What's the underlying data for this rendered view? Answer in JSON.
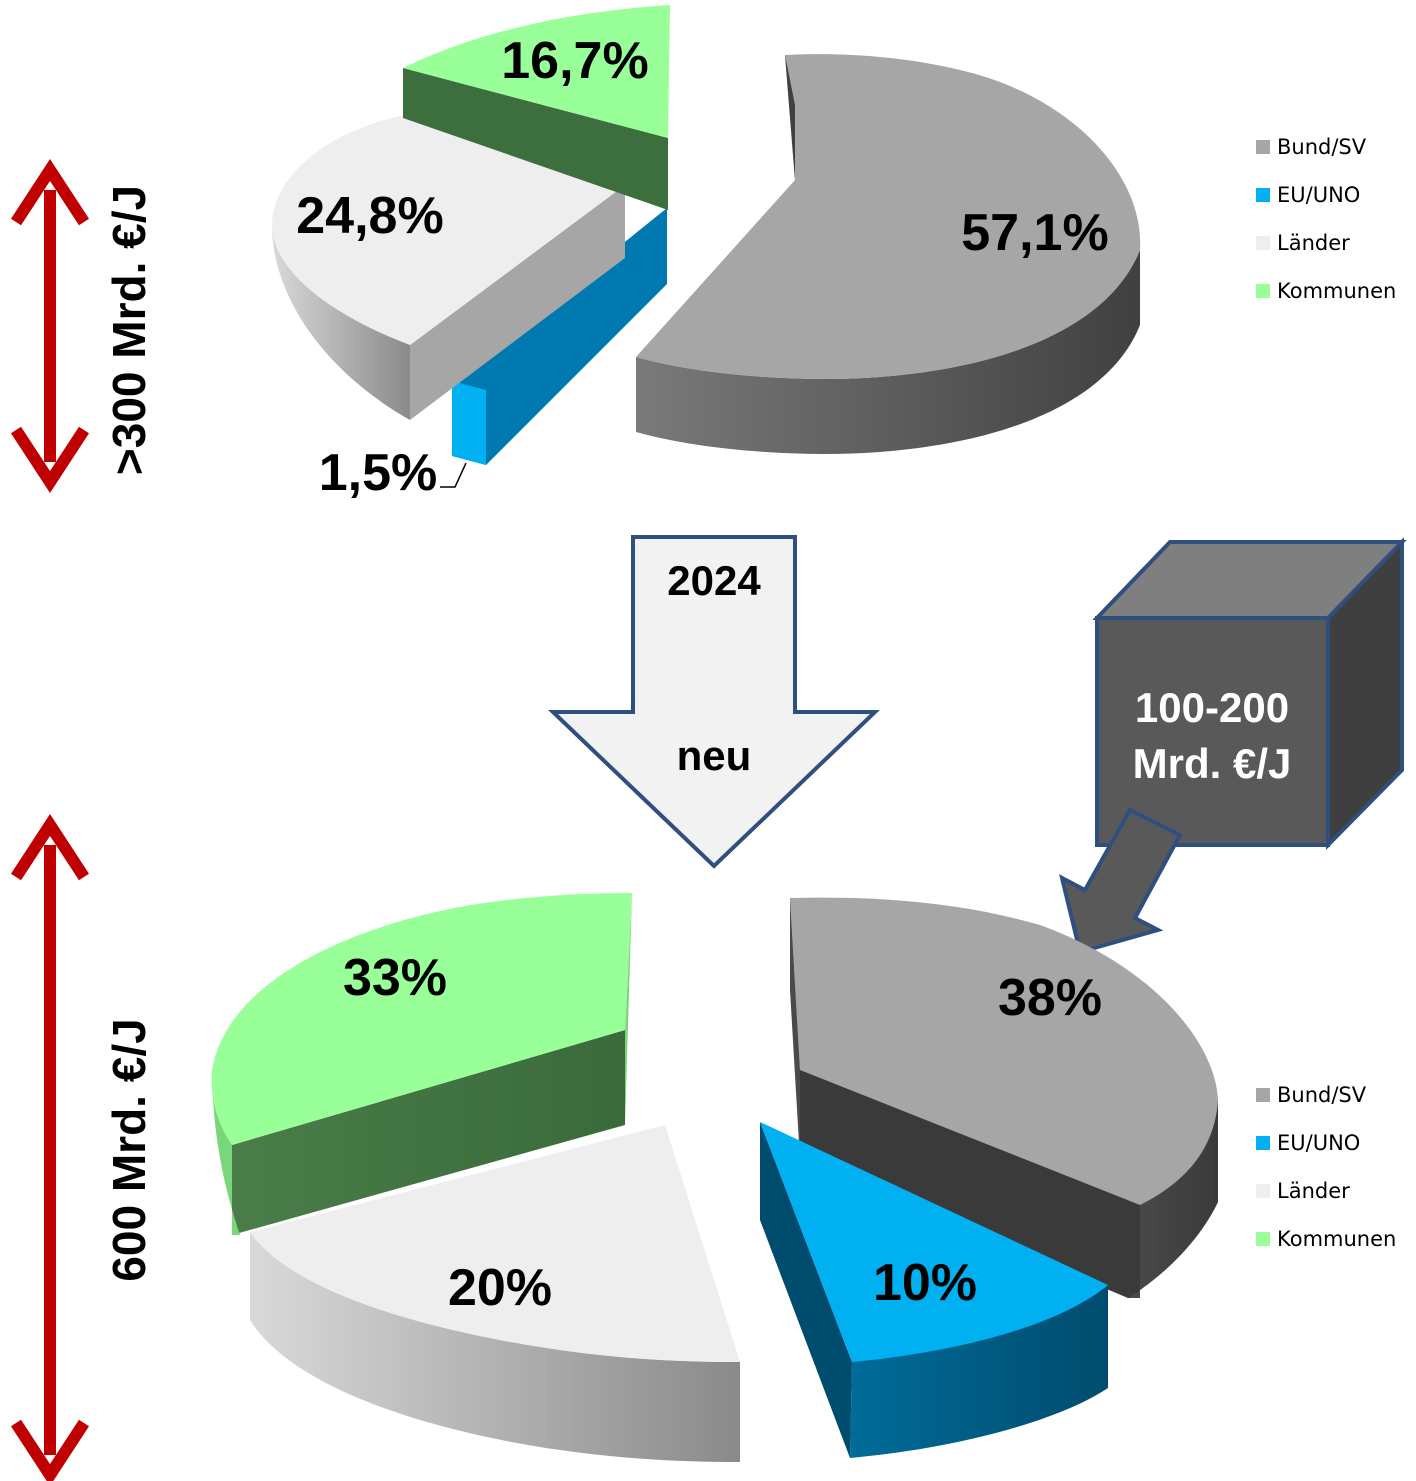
{
  "chart_data": [
    {
      "type": "pie",
      "categories": [
        "Bund/SV",
        "EU/UNO",
        "Länder",
        "Kommunen"
      ],
      "values": [
        57.1,
        1.5,
        24.8,
        16.7
      ],
      "data_labels": [
        "57,1%",
        "1,5%",
        "24,8%",
        "16,7%"
      ],
      "colors": [
        "#a6a6a6",
        "#00b0f0",
        "#eeeeee",
        "#99ff99"
      ],
      "legend": {
        "position": "right",
        "entries": [
          "Bund/SV",
          "EU/UNO",
          "Länder",
          "Kommunen"
        ]
      },
      "total_label": ">300 Mrd. €/J",
      "exploded": true,
      "three_d": true
    },
    {
      "type": "pie",
      "categories": [
        "Bund/SV",
        "EU/UNO",
        "Länder",
        "Kommunen"
      ],
      "values": [
        38,
        10,
        20,
        33
      ],
      "data_labels": [
        "38%",
        "10%",
        "20%",
        "33%"
      ],
      "colors": [
        "#a6a6a6",
        "#00b0f0",
        "#eeeeee",
        "#99ff99"
      ],
      "legend": {
        "position": "right",
        "entries": [
          "Bund/SV",
          "EU/UNO",
          "Länder",
          "Kommunen"
        ]
      },
      "total_label": "600 Mrd. €/J",
      "exploded": true,
      "three_d": true
    }
  ],
  "arrow": {
    "top_label": "2024",
    "bottom_label": "neu"
  },
  "cube": {
    "line1": "100-200",
    "line2": "Mrd. €/J"
  },
  "colors": {
    "range_arrow": "#c00000",
    "arrow_outline": "#2f4f7f",
    "cube_front": "#595959"
  }
}
